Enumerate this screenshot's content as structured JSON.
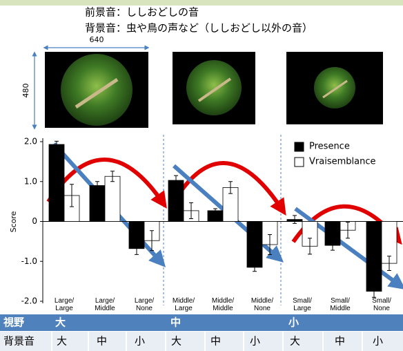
{
  "header": {
    "lines": [
      "前景音：ししおどしの音",
      "背景音：虫や鳥の声など（ししおどし以外の音）"
    ],
    "width_label": "640",
    "height_label": "480"
  },
  "chart_data": {
    "type": "bar",
    "y_label": "Score",
    "categories": [
      "Large/\nLarge",
      "Large/\nMiddle",
      "Large/\nNone",
      "Middle/\nLarge",
      "Middle/\nMiddle",
      "Middle/\nNone",
      "Small/\nLarge",
      "Small/\nMiddle",
      "Small/\nNone"
    ],
    "series": [
      {
        "name": "Presence",
        "color": "#000000",
        "values": [
          1.93,
          0.9,
          -0.68,
          1.03,
          0.27,
          -1.15,
          0.05,
          -0.6,
          -1.75
        ],
        "errors": [
          0.08,
          0.1,
          0.15,
          0.12,
          0.05,
          0.1,
          0.1,
          0.12,
          0.15
        ]
      },
      {
        "name": "Vraisemblance",
        "color": "#ffffff",
        "values": [
          0.65,
          1.13,
          -0.48,
          0.27,
          0.85,
          -0.58,
          -0.62,
          -0.22,
          -1.05
        ],
        "errors": [
          0.28,
          0.13,
          0.25,
          0.2,
          0.15,
          0.25,
          0.2,
          0.2,
          0.18
        ]
      }
    ],
    "ylim": [
      -2,
      2
    ],
    "yticks": [
      {
        "value": -2,
        "label": "-2.0"
      },
      {
        "value": -1,
        "label": "-1.0"
      },
      0,
      {
        "value": 1,
        "label": "1.0"
      },
      {
        "value": 2,
        "label": "2.0"
      }
    ],
    "legend": "top-right"
  },
  "table": {
    "row_header": [
      "視野",
      "大",
      "中",
      "小"
    ],
    "row_sub": [
      "背景音",
      "大",
      "中",
      "小",
      "大",
      "中",
      "小",
      "大",
      "中",
      "小"
    ]
  }
}
